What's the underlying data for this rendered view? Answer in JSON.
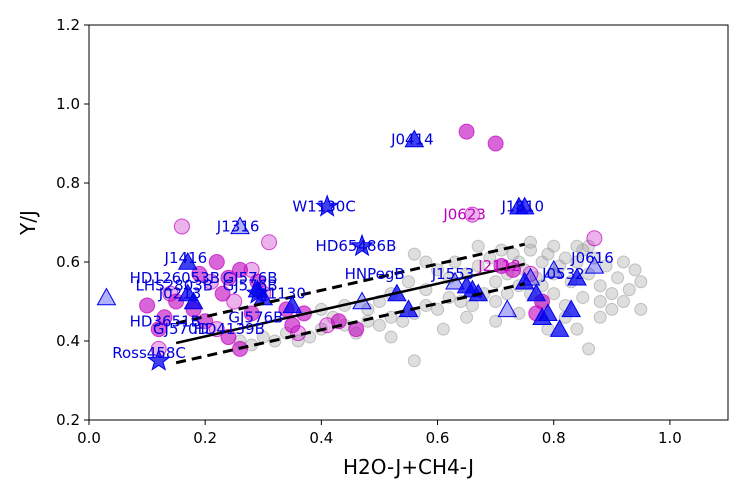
{
  "chart_data": {
    "type": "scatter",
    "title": "",
    "xlabel": "H2O-J+CH4-J",
    "ylabel": "Y/J",
    "xlim": [
      0.0,
      1.1
    ],
    "ylim": [
      0.2,
      1.2
    ],
    "xticks": [
      "0.0",
      "0.2",
      "0.4",
      "0.6",
      "0.8",
      "1.0"
    ],
    "yticks": [
      "0.2",
      "0.4",
      "0.6",
      "0.8",
      "1.0",
      "1.2"
    ],
    "grid": false,
    "colors": {
      "gray": "#a0a0a0",
      "magenta": "#c000c0",
      "blue": "#0000ee",
      "label_blue": "#0000dd",
      "label_magenta": "#c000c0",
      "line": "#000000"
    },
    "trend": {
      "fit": {
        "x": [
          0.15,
          0.75
        ],
        "y": [
          0.395,
          0.595
        ]
      },
      "upper": {
        "x": [
          0.15,
          0.75
        ],
        "y": [
          0.445,
          0.645
        ]
      },
      "lower": {
        "x": [
          0.15,
          0.75
        ],
        "y": [
          0.345,
          0.545
        ]
      }
    },
    "series": [
      {
        "name": "field gray",
        "marker": "circle",
        "color": "#a0a0a0",
        "points": [
          [
            0.48,
            0.48
          ],
          [
            0.5,
            0.5
          ],
          [
            0.52,
            0.52
          ],
          [
            0.55,
            0.55
          ],
          [
            0.58,
            0.53
          ],
          [
            0.6,
            0.58
          ],
          [
            0.62,
            0.56
          ],
          [
            0.63,
            0.6
          ],
          [
            0.65,
            0.57
          ],
          [
            0.67,
            0.59
          ],
          [
            0.69,
            0.61
          ],
          [
            0.7,
            0.55
          ],
          [
            0.72,
            0.57
          ],
          [
            0.73,
            0.62
          ],
          [
            0.74,
            0.6
          ],
          [
            0.75,
            0.58
          ],
          [
            0.76,
            0.63
          ],
          [
            0.77,
            0.56
          ],
          [
            0.78,
            0.6
          ],
          [
            0.79,
            0.62
          ],
          [
            0.8,
            0.57
          ],
          [
            0.81,
            0.59
          ],
          [
            0.82,
            0.61
          ],
          [
            0.83,
            0.55
          ],
          [
            0.84,
            0.6
          ],
          [
            0.85,
            0.63
          ],
          [
            0.86,
            0.57
          ],
          [
            0.87,
            0.61
          ],
          [
            0.88,
            0.54
          ],
          [
            0.89,
            0.59
          ],
          [
            0.9,
            0.52
          ],
          [
            0.91,
            0.56
          ],
          [
            0.92,
            0.6
          ],
          [
            0.93,
            0.53
          ],
          [
            0.94,
            0.58
          ],
          [
            0.95,
            0.55
          ],
          [
            0.9,
            0.48
          ],
          [
            0.88,
            0.5
          ],
          [
            0.85,
            0.51
          ],
          [
            0.82,
            0.49
          ],
          [
            0.8,
            0.52
          ],
          [
            0.78,
            0.5
          ],
          [
            0.76,
            0.52
          ],
          [
            0.74,
            0.54
          ],
          [
            0.72,
            0.52
          ],
          [
            0.7,
            0.5
          ],
          [
            0.68,
            0.52
          ],
          [
            0.66,
            0.49
          ],
          [
            0.64,
            0.5
          ],
          [
            0.62,
            0.51
          ],
          [
            0.6,
            0.48
          ],
          [
            0.58,
            0.49
          ],
          [
            0.56,
            0.47
          ],
          [
            0.54,
            0.45
          ],
          [
            0.52,
            0.46
          ],
          [
            0.5,
            0.44
          ],
          [
            0.48,
            0.45
          ],
          [
            0.46,
            0.42
          ],
          [
            0.44,
            0.44
          ],
          [
            0.42,
            0.46
          ],
          [
            0.4,
            0.43
          ],
          [
            0.38,
            0.41
          ],
          [
            0.36,
            0.4
          ],
          [
            0.34,
            0.42
          ],
          [
            0.32,
            0.4
          ],
          [
            0.3,
            0.41
          ],
          [
            0.28,
            0.39
          ],
          [
            0.26,
            0.4
          ],
          [
            0.4,
            0.48
          ],
          [
            0.44,
            0.49
          ],
          [
            0.56,
            0.62
          ],
          [
            0.58,
            0.6
          ],
          [
            0.67,
            0.64
          ],
          [
            0.71,
            0.63
          ],
          [
            0.8,
            0.64
          ],
          [
            0.84,
            0.64
          ],
          [
            0.86,
            0.64
          ],
          [
            0.92,
            0.5
          ],
          [
            0.95,
            0.48
          ],
          [
            0.86,
            0.38
          ],
          [
            0.79,
            0.43
          ],
          [
            0.82,
            0.46
          ],
          [
            0.56,
            0.35
          ],
          [
            0.65,
            0.46
          ],
          [
            0.52,
            0.41
          ],
          [
            0.78,
            0.54
          ],
          [
            0.74,
            0.47
          ],
          [
            0.7,
            0.45
          ],
          [
            0.84,
            0.43
          ],
          [
            0.61,
            0.43
          ],
          [
            0.88,
            0.46
          ],
          [
            0.76,
            0.65
          ]
        ]
      },
      {
        "name": "magenta",
        "marker": "circle",
        "color": "#c000c0",
        "points": [
          [
            0.16,
            0.69
          ],
          [
            0.22,
            0.6
          ],
          [
            0.19,
            0.57
          ],
          [
            0.21,
            0.55
          ],
          [
            0.24,
            0.56
          ],
          [
            0.26,
            0.58
          ],
          [
            0.28,
            0.58
          ],
          [
            0.29,
            0.55
          ],
          [
            0.23,
            0.52
          ],
          [
            0.25,
            0.5
          ],
          [
            0.18,
            0.48
          ],
          [
            0.2,
            0.45
          ],
          [
            0.22,
            0.43
          ],
          [
            0.24,
            0.41
          ],
          [
            0.26,
            0.38
          ],
          [
            0.14,
            0.52
          ],
          [
            0.15,
            0.5
          ],
          [
            0.12,
            0.43
          ],
          [
            0.12,
            0.38
          ],
          [
            0.35,
            0.44
          ],
          [
            0.37,
            0.47
          ],
          [
            0.41,
            0.44
          ],
          [
            0.43,
            0.45
          ],
          [
            0.46,
            0.43
          ],
          [
            0.31,
            0.65
          ],
          [
            0.65,
            0.93
          ],
          [
            0.7,
            0.9
          ],
          [
            0.66,
            0.72
          ],
          [
            0.71,
            0.59
          ],
          [
            0.73,
            0.58
          ],
          [
            0.76,
            0.57
          ],
          [
            0.77,
            0.47
          ],
          [
            0.78,
            0.5
          ],
          [
            0.87,
            0.66
          ],
          [
            0.13,
            0.46
          ],
          [
            0.1,
            0.49
          ],
          [
            0.3,
            0.52
          ],
          [
            0.28,
            0.47
          ],
          [
            0.34,
            0.48
          ],
          [
            0.36,
            0.42
          ]
        ]
      },
      {
        "name": "blue triangles",
        "marker": "triangle",
        "color": "#0000ee",
        "points": [
          [
            0.03,
            0.51
          ],
          [
            0.17,
            0.6
          ],
          [
            0.17,
            0.52
          ],
          [
            0.18,
            0.5
          ],
          [
            0.26,
            0.69
          ],
          [
            0.29,
            0.53
          ],
          [
            0.3,
            0.51
          ],
          [
            0.35,
            0.49
          ],
          [
            0.47,
            0.5
          ],
          [
            0.53,
            0.52
          ],
          [
            0.55,
            0.48
          ],
          [
            0.56,
            0.91
          ],
          [
            0.63,
            0.55
          ],
          [
            0.65,
            0.54
          ],
          [
            0.66,
            0.53
          ],
          [
            0.67,
            0.52
          ],
          [
            0.72,
            0.48
          ],
          [
            0.74,
            0.74
          ],
          [
            0.75,
            0.74
          ],
          [
            0.75,
            0.55
          ],
          [
            0.76,
            0.56
          ],
          [
            0.77,
            0.52
          ],
          [
            0.78,
            0.46
          ],
          [
            0.79,
            0.47
          ],
          [
            0.8,
            0.58
          ],
          [
            0.81,
            0.43
          ],
          [
            0.83,
            0.48
          ],
          [
            0.84,
            0.56
          ],
          [
            0.87,
            0.59
          ]
        ]
      },
      {
        "name": "blue stars",
        "marker": "star",
        "color": "#0000ee",
        "points": [
          [
            0.41,
            0.74
          ],
          [
            0.47,
            0.64
          ],
          [
            0.12,
            0.35
          ],
          [
            0.29,
            0.52
          ]
        ]
      }
    ],
    "annotations": [
      {
        "text": "J0414",
        "x": 0.52,
        "y": 0.91,
        "color": "#0000dd"
      },
      {
        "text": "W1130C",
        "x": 0.35,
        "y": 0.74,
        "color": "#0000dd"
      },
      {
        "text": "J1810",
        "x": 0.71,
        "y": 0.74,
        "color": "#0000dd"
      },
      {
        "text": "J0623",
        "x": 0.61,
        "y": 0.72,
        "color": "#c000c0"
      },
      {
        "text": "J1316",
        "x": 0.22,
        "y": 0.69,
        "color": "#0000dd"
      },
      {
        "text": "HD65486B",
        "x": 0.39,
        "y": 0.64,
        "color": "#0000dd"
      },
      {
        "text": "J1416",
        "x": 0.13,
        "y": 0.61,
        "color": "#0000dd"
      },
      {
        "text": "J0616",
        "x": 0.83,
        "y": 0.61,
        "color": "#0000dd"
      },
      {
        "text": "J2112",
        "x": 0.67,
        "y": 0.59,
        "color": "#c000c0"
      },
      {
        "text": "HNPegB",
        "x": 0.44,
        "y": 0.57,
        "color": "#0000dd"
      },
      {
        "text": "J1553",
        "x": 0.59,
        "y": 0.57,
        "color": "#0000dd"
      },
      {
        "text": "J0532",
        "x": 0.78,
        "y": 0.57,
        "color": "#0000dd"
      },
      {
        "text": "HD126053B",
        "x": 0.07,
        "y": 0.56,
        "color": "#0000dd"
      },
      {
        "text": "GJ576B",
        "x": 0.23,
        "y": 0.56,
        "color": "#0000dd"
      },
      {
        "text": "LHS2803B",
        "x": 0.08,
        "y": 0.54,
        "color": "#0000dd"
      },
      {
        "text": "GJ576B",
        "x": 0.23,
        "y": 0.54,
        "color": "#0000dd"
      },
      {
        "text": "J0213",
        "x": 0.12,
        "y": 0.52,
        "color": "#0000dd"
      },
      {
        "text": "J1130",
        "x": 0.3,
        "y": 0.52,
        "color": "#0000dd"
      },
      {
        "text": "HD3651B",
        "x": 0.07,
        "y": 0.45,
        "color": "#0000dd"
      },
      {
        "text": "GJ576B",
        "x": 0.24,
        "y": 0.46,
        "color": "#0000dd"
      },
      {
        "text": "GJ570D",
        "x": 0.11,
        "y": 0.43,
        "color": "#0000dd"
      },
      {
        "text": "HD4139B",
        "x": 0.18,
        "y": 0.43,
        "color": "#0000dd"
      },
      {
        "text": "Ross458C",
        "x": 0.04,
        "y": 0.37,
        "color": "#0000dd"
      }
    ]
  }
}
